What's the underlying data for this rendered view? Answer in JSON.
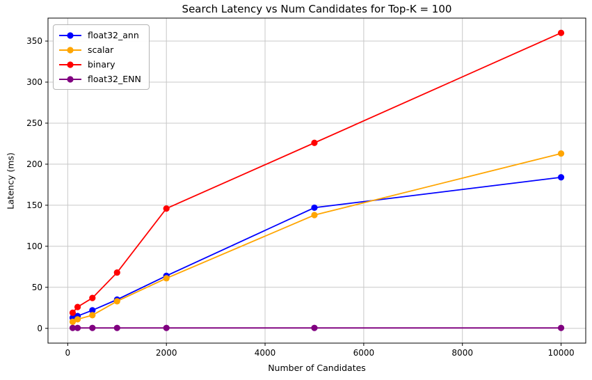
{
  "chart_data": {
    "type": "line",
    "title": "Search Latency vs Num Candidates for Top-K = 100",
    "xlabel": "Number of Candidates",
    "ylabel": "Latency (ms)",
    "x": [
      100,
      200,
      500,
      1000,
      2000,
      5000,
      10000
    ],
    "series": [
      {
        "name": "float32_ann",
        "color": "#0000ff",
        "values": [
          13,
          15,
          22,
          35,
          64,
          147,
          184
        ]
      },
      {
        "name": "scalar",
        "color": "#ffa500",
        "values": [
          8,
          11,
          16,
          33,
          61,
          138,
          213
        ]
      },
      {
        "name": "binary",
        "color": "#ff0000",
        "values": [
          19,
          26,
          37,
          68,
          146,
          226,
          360
        ]
      },
      {
        "name": "float32_ENN",
        "color": "#800080",
        "values": [
          0.5,
          0.5,
          0.5,
          0.5,
          0.5,
          0.5,
          0.5
        ]
      }
    ],
    "xticks": [
      0,
      2000,
      4000,
      6000,
      8000,
      10000
    ],
    "xtick_labels": [
      "0",
      "2000",
      "4000",
      "6000",
      "8000",
      "10000"
    ],
    "yticks": [
      0,
      50,
      100,
      150,
      200,
      250,
      300,
      350
    ],
    "ytick_labels": [
      "0",
      "50",
      "100",
      "150",
      "200",
      "250",
      "300",
      "350"
    ],
    "xlim": [
      -400,
      10500
    ],
    "ylim": [
      -18,
      378
    ],
    "grid": true,
    "grid_color": "#c8c8c8",
    "axis_color": "#000000",
    "legend_position": "upper-left"
  }
}
